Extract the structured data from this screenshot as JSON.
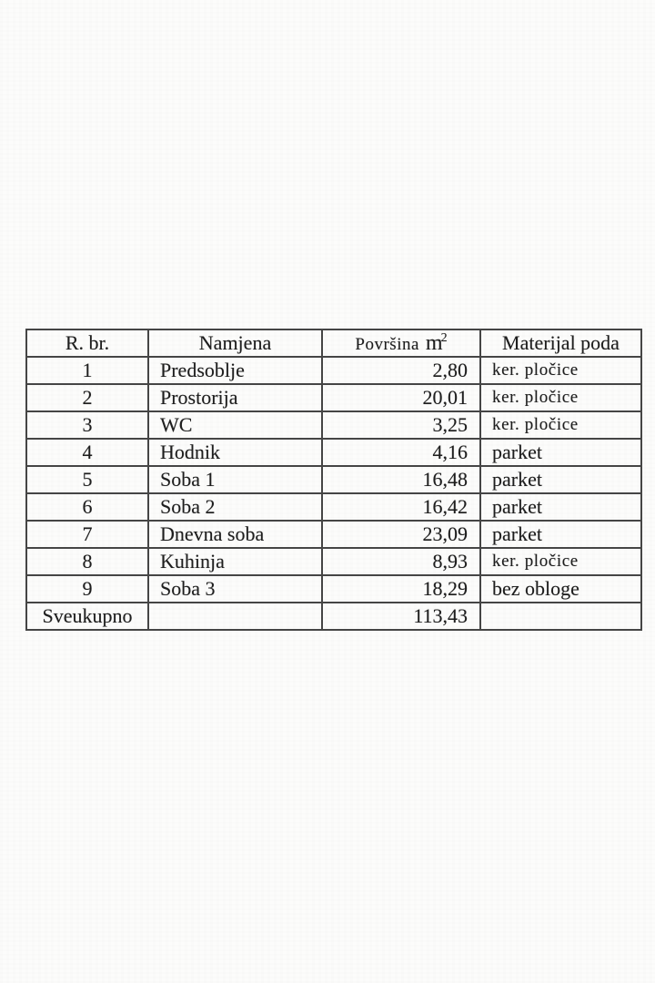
{
  "page": {
    "background_color": "#fcfcfb",
    "text_color": "#1e1e1e",
    "border_color": "#454545"
  },
  "table": {
    "headers": [
      {
        "label": "R. br."
      },
      {
        "label": "Namjena"
      },
      {
        "label": "Površina",
        "unit": "m",
        "sup": "2"
      },
      {
        "label": "Materijal poda"
      }
    ],
    "rows": [
      {
        "num": "1",
        "name": "Predsoblje",
        "area": "2,80",
        "material": "ker. pločice"
      },
      {
        "num": "2",
        "name": "Prostorija",
        "area": "20,01",
        "material": "ker. pločice"
      },
      {
        "num": "3",
        "name": "WC",
        "area": "3,25",
        "material": "ker. pločice"
      },
      {
        "num": "4",
        "name": "Hodnik",
        "area": "4,16",
        "material": "parket"
      },
      {
        "num": "5",
        "name": "Soba 1",
        "area": "16,48",
        "material": "parket"
      },
      {
        "num": "6",
        "name": "Soba 2",
        "area": "16,42",
        "material": "parket"
      },
      {
        "num": "7",
        "name": "Dnevna soba",
        "area": "23,09",
        "material": "parket"
      },
      {
        "num": "8",
        "name": "Kuhinja",
        "area": "8,93",
        "material": "ker. pločice"
      },
      {
        "num": "9",
        "name": "Soba 3",
        "area": "18,29",
        "material": "bez obloge"
      }
    ],
    "small_material_value": "ker. pločice",
    "total": {
      "label": "Sveukupno",
      "area": "113,43"
    }
  }
}
